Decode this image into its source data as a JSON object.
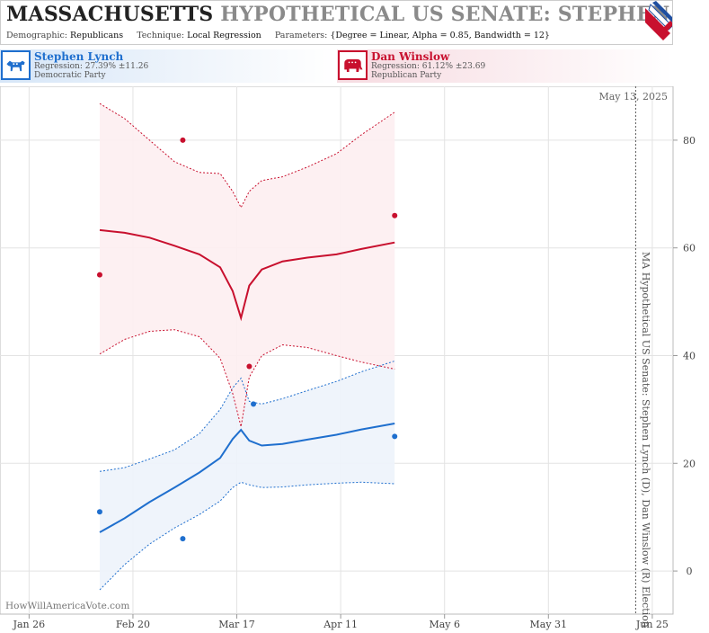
{
  "header": {
    "title_state": "MASSACHUSETTS",
    "title_rest": "HYPOTHETICAL US SENATE: STEPHEN LYNCH",
    "demographic_label": "Demographic:",
    "demographic_value": "Republicans",
    "technique_label": "Technique:",
    "technique_value": "Local Regression",
    "parameters_label": "Parameters:",
    "parameters_value": "{Degree = Linear, Alpha = 0.85, Bandwidth = 12}"
  },
  "candidates": [
    {
      "name": "Stephen Lynch",
      "regression": "Regression: 27.39% ±11.26",
      "party": "Democratic Party",
      "color": "#1f6fce"
    },
    {
      "name": "Dan Winslow",
      "regression": "Regression: 61.12% ±23.69",
      "party": "Republican Party",
      "color": "#c8102e"
    }
  ],
  "chart_data": {
    "type": "line",
    "title": "MA Hypothetical US Senate: Stephen Lynch (D), Dan Winslow (R) Election",
    "date_label": "May 13, 2025",
    "watermark": "HowWillAmericaVote.com",
    "x_ticks": [
      {
        "label": "Jan 26",
        "date": "2025-01-26"
      },
      {
        "label": "Feb 20",
        "date": "2025-02-20"
      },
      {
        "label": "Mar 17",
        "date": "2025-03-17"
      },
      {
        "label": "Apr 11",
        "date": "2025-04-11"
      },
      {
        "label": "May 6",
        "date": "2025-05-06"
      },
      {
        "label": "May 31",
        "date": "2025-05-31"
      },
      {
        "label": "Jun 25",
        "date": "2025-06-25"
      }
    ],
    "xlim": [
      "2025-01-19",
      "2025-06-30"
    ],
    "ylim": [
      -8,
      90
    ],
    "y_ticks": [
      0,
      20,
      40,
      60,
      80
    ],
    "grid": true,
    "series": [
      {
        "name": "Stephen Lynch",
        "color": "#1f6fce",
        "band_fill": "#edf3fb",
        "trend": [
          [
            "2025-02-12",
            7.2
          ],
          [
            "2025-02-18",
            9.8
          ],
          [
            "2025-02-24",
            12.8
          ],
          [
            "2025-03-02",
            15.5
          ],
          [
            "2025-03-08",
            18.3
          ],
          [
            "2025-03-13",
            21.0
          ],
          [
            "2025-03-16",
            24.5
          ],
          [
            "2025-03-18",
            26.2
          ],
          [
            "2025-03-20",
            24.2
          ],
          [
            "2025-03-23",
            23.3
          ],
          [
            "2025-03-28",
            23.6
          ],
          [
            "2025-04-03",
            24.4
          ],
          [
            "2025-04-10",
            25.3
          ],
          [
            "2025-04-16",
            26.3
          ],
          [
            "2025-04-24",
            27.4
          ]
        ],
        "upper": [
          [
            "2025-02-12",
            18.5
          ],
          [
            "2025-02-18",
            19.2
          ],
          [
            "2025-02-24",
            20.8
          ],
          [
            "2025-03-02",
            22.5
          ],
          [
            "2025-03-08",
            25.5
          ],
          [
            "2025-03-13",
            30.0
          ],
          [
            "2025-03-16",
            34.0
          ],
          [
            "2025-03-18",
            35.8
          ],
          [
            "2025-03-20",
            31.5
          ],
          [
            "2025-03-23",
            31.0
          ],
          [
            "2025-03-28",
            32.0
          ],
          [
            "2025-04-03",
            33.5
          ],
          [
            "2025-04-10",
            35.2
          ],
          [
            "2025-04-16",
            37.0
          ],
          [
            "2025-04-24",
            39.0
          ]
        ],
        "lower": [
          [
            "2025-02-12",
            -3.5
          ],
          [
            "2025-02-18",
            1.2
          ],
          [
            "2025-02-24",
            5.0
          ],
          [
            "2025-03-02",
            8.0
          ],
          [
            "2025-03-08",
            10.5
          ],
          [
            "2025-03-13",
            13.0
          ],
          [
            "2025-03-16",
            15.5
          ],
          [
            "2025-03-18",
            16.5
          ],
          [
            "2025-03-20",
            16.0
          ],
          [
            "2025-03-23",
            15.5
          ],
          [
            "2025-03-28",
            15.6
          ],
          [
            "2025-04-03",
            16.0
          ],
          [
            "2025-04-10",
            16.3
          ],
          [
            "2025-04-16",
            16.5
          ],
          [
            "2025-04-24",
            16.2
          ]
        ],
        "points": [
          [
            "2025-02-12",
            11.0
          ],
          [
            "2025-03-04",
            6.0
          ],
          [
            "2025-03-21",
            31.0
          ],
          [
            "2025-04-24",
            25.0
          ]
        ]
      },
      {
        "name": "Dan Winslow",
        "color": "#c8102e",
        "band_fill": "#fdeef1",
        "trend": [
          [
            "2025-02-12",
            63.3
          ],
          [
            "2025-02-18",
            62.8
          ],
          [
            "2025-02-24",
            61.9
          ],
          [
            "2025-03-02",
            60.4
          ],
          [
            "2025-03-08",
            58.8
          ],
          [
            "2025-03-13",
            56.4
          ],
          [
            "2025-03-16",
            52.0
          ],
          [
            "2025-03-18",
            47.0
          ],
          [
            "2025-03-20",
            53.0
          ],
          [
            "2025-03-23",
            56.0
          ],
          [
            "2025-03-28",
            57.5
          ],
          [
            "2025-04-03",
            58.2
          ],
          [
            "2025-04-10",
            58.8
          ],
          [
            "2025-04-16",
            59.8
          ],
          [
            "2025-04-24",
            61.0
          ]
        ],
        "upper": [
          [
            "2025-02-12",
            86.8
          ],
          [
            "2025-02-18",
            84.0
          ],
          [
            "2025-02-24",
            80.0
          ],
          [
            "2025-03-02",
            76.0
          ],
          [
            "2025-03-08",
            74.0
          ],
          [
            "2025-03-13",
            73.8
          ],
          [
            "2025-03-16",
            70.5
          ],
          [
            "2025-03-18",
            67.5
          ],
          [
            "2025-03-20",
            70.5
          ],
          [
            "2025-03-23",
            72.5
          ],
          [
            "2025-03-28",
            73.2
          ],
          [
            "2025-04-03",
            75.0
          ],
          [
            "2025-04-10",
            77.5
          ],
          [
            "2025-04-16",
            81.0
          ],
          [
            "2025-04-24",
            85.2
          ]
        ],
        "lower": [
          [
            "2025-02-12",
            40.3
          ],
          [
            "2025-02-18",
            43.0
          ],
          [
            "2025-02-24",
            44.5
          ],
          [
            "2025-03-02",
            44.8
          ],
          [
            "2025-03-08",
            43.5
          ],
          [
            "2025-03-13",
            39.5
          ],
          [
            "2025-03-16",
            33.0
          ],
          [
            "2025-03-18",
            26.8
          ],
          [
            "2025-03-20",
            36.0
          ],
          [
            "2025-03-23",
            40.0
          ],
          [
            "2025-03-28",
            42.0
          ],
          [
            "2025-04-03",
            41.5
          ],
          [
            "2025-04-10",
            40.0
          ],
          [
            "2025-04-16",
            38.8
          ],
          [
            "2025-04-24",
            37.5
          ]
        ],
        "points": [
          [
            "2025-02-12",
            55.0
          ],
          [
            "2025-03-04",
            80.0
          ],
          [
            "2025-03-20",
            38.0
          ],
          [
            "2025-04-24",
            66.0
          ]
        ]
      }
    ]
  }
}
